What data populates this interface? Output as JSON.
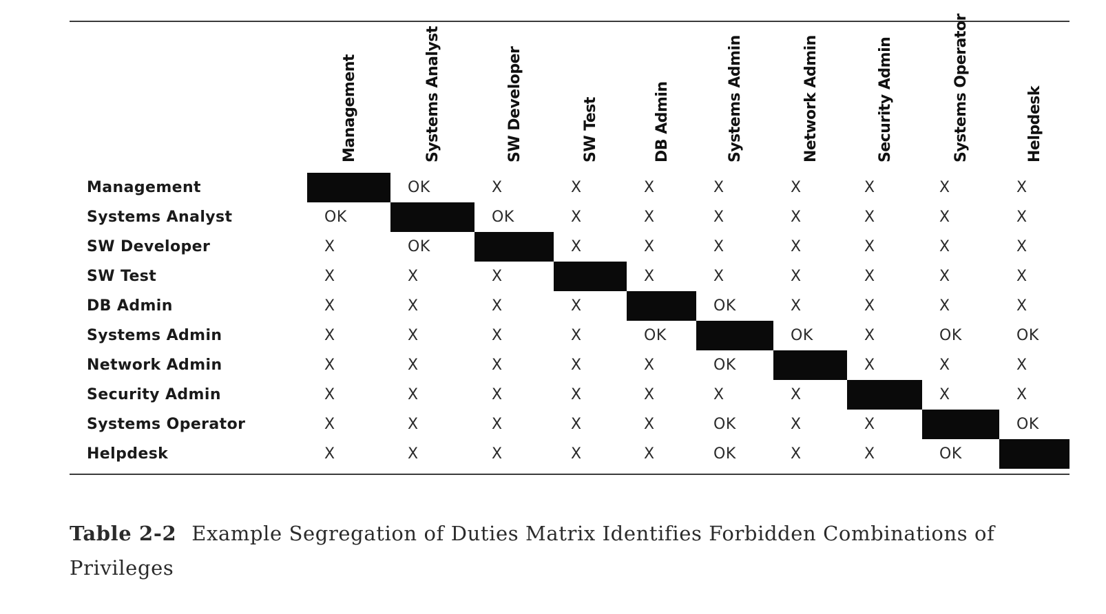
{
  "table": {
    "columns": [
      "Management",
      "Systems Analyst",
      "SW Developer",
      "SW Test",
      "DB Admin",
      "Systems Admin",
      "Network Admin",
      "Security Admin",
      "Systems Operator",
      "Helpdesk"
    ],
    "rows": [
      {
        "label": "Management",
        "cells": [
          "",
          "OK",
          "X",
          "X",
          "X",
          "X",
          "X",
          "X",
          "X",
          "X"
        ]
      },
      {
        "label": "Systems Analyst",
        "cells": [
          "OK",
          "",
          "OK",
          "X",
          "X",
          "X",
          "X",
          "X",
          "X",
          "X"
        ]
      },
      {
        "label": "SW Developer",
        "cells": [
          "X",
          "OK",
          "",
          "X",
          "X",
          "X",
          "X",
          "X",
          "X",
          "X"
        ]
      },
      {
        "label": "SW Test",
        "cells": [
          "X",
          "X",
          "X",
          "",
          "X",
          "X",
          "X",
          "X",
          "X",
          "X"
        ]
      },
      {
        "label": "DB Admin",
        "cells": [
          "X",
          "X",
          "X",
          "X",
          "",
          "OK",
          "X",
          "X",
          "X",
          "X"
        ]
      },
      {
        "label": "Systems Admin",
        "cells": [
          "X",
          "X",
          "X",
          "X",
          "OK",
          "",
          "OK",
          "X",
          "OK",
          "OK"
        ]
      },
      {
        "label": "Network Admin",
        "cells": [
          "X",
          "X",
          "X",
          "X",
          "X",
          "OK",
          "",
          "X",
          "X",
          "X"
        ]
      },
      {
        "label": "Security Admin",
        "cells": [
          "X",
          "X",
          "X",
          "X",
          "X",
          "X",
          "X",
          "",
          "X",
          "X"
        ]
      },
      {
        "label": "Systems Operator",
        "cells": [
          "X",
          "X",
          "X",
          "X",
          "X",
          "OK",
          "X",
          "X",
          "",
          "OK"
        ]
      },
      {
        "label": "Helpdesk",
        "cells": [
          "X",
          "X",
          "X",
          "X",
          "X",
          "OK",
          "X",
          "X",
          "OK",
          ""
        ]
      }
    ],
    "blocked_fill": "#0a0a0a"
  },
  "caption": {
    "label": "Table 2-2",
    "text": "Example Segregation of Duties Matrix Identifies Forbidden Combinations of Privileges"
  }
}
